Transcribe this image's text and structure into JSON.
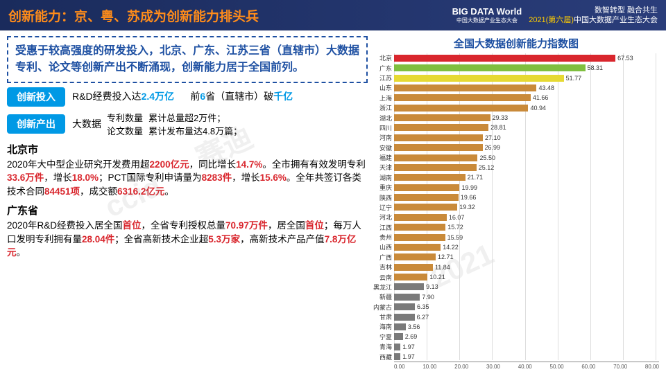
{
  "header": {
    "title": "创新能力：京、粤、苏成为创新能力排头兵",
    "logo_main": "BIG DATA World",
    "logo_sub": "中国大数据产业生态大会",
    "sub_line1": "数智转型 融合共生",
    "sub_line2_year": "2021(第六届)",
    "sub_line2_rest": "中国大数据产业生态大会"
  },
  "summary": "受惠于较高强度的研发投入，北京、广东、江苏三省（直辖市）大数据专利、论文等创新产出不断涌现，创新能力居于全国前列。",
  "input_tag": "创新投入",
  "input_text_a": "R&D经费投入达",
  "input_text_a_hl": "2.4万亿",
  "input_text_b": "前",
  "input_text_b_hl": "6",
  "input_text_b2": "省（直辖市）破",
  "input_text_b2_hl": "千亿",
  "output_tag": "创新产出",
  "output_left": "大数据",
  "output_r1a": "专利数量",
  "output_r1b": "累计总量超2万件；",
  "output_r2a": "论文数量",
  "output_r2b": "累计发布量达4.8万篇；",
  "beijing": {
    "name": "北京市",
    "text": "2020年大中型企业研究开发费用超|2200亿元|，同比增长|14.7%|。全市拥有有效发明专利|33.6万件|，增长|18.0%|；PCT国际专利申请量为|8283件|，增长|15.6%|。全年共签订各类技术合同|84451项|，成交额|6316.2亿元|。"
  },
  "guangdong": {
    "name": "广东省",
    "text": "2020年R&D经费投入居全国|首位|，全省专利授权总量|70.97万件|，居全国|首位|；每万人口发明专利拥有量|28.04件|；全省高新技术企业超|5.3万家|，高新技术产品产值|7.8万亿元|。"
  },
  "chart": {
    "title": "全国大数据创新能力指数图",
    "xmax": 80,
    "xticks": [
      "0.00",
      "10.00",
      "20.00",
      "30.00",
      "40.00",
      "50.00",
      "60.00",
      "70.00",
      "80.00"
    ],
    "top3_colors": [
      "#d9262d",
      "#7fbf3f",
      "#e6d933"
    ],
    "default_color": "#c98a3a",
    "low_color": "#7a7a7a",
    "data": [
      {
        "label": "北京",
        "value": 67.53
      },
      {
        "label": "广东",
        "value": 58.31
      },
      {
        "label": "江苏",
        "value": 51.77
      },
      {
        "label": "山东",
        "value": 43.48
      },
      {
        "label": "上海",
        "value": 41.66
      },
      {
        "label": "浙江",
        "value": 40.94
      },
      {
        "label": "湖北",
        "value": 29.33
      },
      {
        "label": "四川",
        "value": 28.81
      },
      {
        "label": "河南",
        "value": 27.1
      },
      {
        "label": "安徽",
        "value": 26.99
      },
      {
        "label": "福建",
        "value": 25.5
      },
      {
        "label": "天津",
        "value": 25.12
      },
      {
        "label": "湖南",
        "value": 21.71
      },
      {
        "label": "重庆",
        "value": 19.99
      },
      {
        "label": "陕西",
        "value": 19.66
      },
      {
        "label": "辽宁",
        "value": 19.32
      },
      {
        "label": "河北",
        "value": 16.07
      },
      {
        "label": "江西",
        "value": 15.72
      },
      {
        "label": "贵州",
        "value": 15.59
      },
      {
        "label": "山西",
        "value": 14.22
      },
      {
        "label": "广西",
        "value": 12.71
      },
      {
        "label": "吉林",
        "value": 11.84
      },
      {
        "label": "云南",
        "value": 10.21
      },
      {
        "label": "黑龙江",
        "value": 9.13
      },
      {
        "label": "新疆",
        "value": 7.9
      },
      {
        "label": "内蒙古",
        "value": 6.35
      },
      {
        "label": "甘肃",
        "value": 6.27
      },
      {
        "label": "海南",
        "value": 3.56
      },
      {
        "label": "宁夏",
        "value": 2.69
      },
      {
        "label": "青海",
        "value": 1.97
      },
      {
        "label": "西藏",
        "value": 1.97
      }
    ]
  },
  "watermarks": [
    "赛迪",
    "ccid",
    "2021"
  ]
}
